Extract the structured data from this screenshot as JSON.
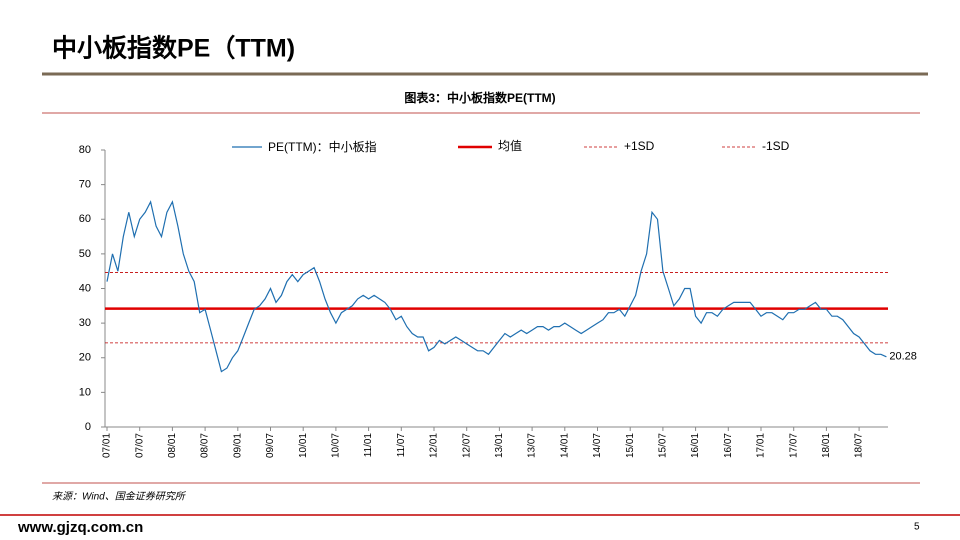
{
  "slide": {
    "title": "中小板指数PE（TTM)",
    "source": "来源：Wind、国金证券研究所",
    "website": "www.gjzq.com.cn",
    "page_number": "5"
  },
  "chart_data": {
    "type": "line",
    "title": "图表3：中小板指数PE(TTM)",
    "x": [
      "07/01",
      "07/02",
      "07/03",
      "07/04",
      "07/05",
      "07/06",
      "07/07",
      "07/08",
      "07/09",
      "07/10",
      "07/11",
      "07/12",
      "08/01",
      "08/02",
      "08/03",
      "08/04",
      "08/05",
      "08/06",
      "08/07",
      "08/08",
      "08/09",
      "08/10",
      "08/11",
      "08/12",
      "09/01",
      "09/02",
      "09/03",
      "09/04",
      "09/05",
      "09/06",
      "09/07",
      "09/08",
      "09/09",
      "09/10",
      "09/11",
      "09/12",
      "10/01",
      "10/02",
      "10/03",
      "10/04",
      "10/05",
      "10/06",
      "10/07",
      "10/08",
      "10/09",
      "10/10",
      "10/11",
      "10/12",
      "11/01",
      "11/02",
      "11/03",
      "11/04",
      "11/05",
      "11/06",
      "11/07",
      "11/08",
      "11/09",
      "11/10",
      "11/11",
      "11/12",
      "12/01",
      "12/02",
      "12/03",
      "12/04",
      "12/05",
      "12/06",
      "12/07",
      "12/08",
      "12/09",
      "12/10",
      "12/11",
      "12/12",
      "13/01",
      "13/02",
      "13/03",
      "13/04",
      "13/05",
      "13/06",
      "13/07",
      "13/08",
      "13/09",
      "13/10",
      "13/11",
      "13/12",
      "14/01",
      "14/02",
      "14/03",
      "14/04",
      "14/05",
      "14/06",
      "14/07",
      "14/08",
      "14/09",
      "14/10",
      "14/11",
      "14/12",
      "15/01",
      "15/02",
      "15/03",
      "15/04",
      "15/05",
      "15/06",
      "15/07",
      "15/08",
      "15/09",
      "15/10",
      "15/11",
      "15/12",
      "16/01",
      "16/02",
      "16/03",
      "16/04",
      "16/05",
      "16/06",
      "16/07",
      "16/08",
      "16/09",
      "16/10",
      "16/11",
      "16/12",
      "17/01",
      "17/02",
      "17/03",
      "17/04",
      "17/05",
      "17/06",
      "17/07",
      "17/08",
      "17/09",
      "17/10",
      "17/11",
      "17/12",
      "18/01",
      "18/02",
      "18/03",
      "18/04",
      "18/05",
      "18/06",
      "18/07",
      "18/08",
      "18/09",
      "18/10",
      "18/11",
      "18/12"
    ],
    "series": [
      {
        "name": "PE(TTM)：中小板指",
        "color": "#1f6fb0",
        "values": [
          42,
          50,
          45,
          55,
          62,
          55,
          60,
          62,
          65,
          58,
          55,
          62,
          65,
          58,
          50,
          45,
          42,
          33,
          34,
          28,
          22,
          16,
          17,
          20,
          22,
          26,
          30,
          34,
          35,
          37,
          40,
          36,
          38,
          42,
          44,
          42,
          44,
          45,
          46,
          42,
          37,
          33,
          30,
          33,
          34,
          35,
          37,
          38,
          37,
          38,
          37,
          36,
          34,
          31,
          32,
          29,
          27,
          26,
          26,
          22,
          23,
          25,
          24,
          25,
          26,
          25,
          24,
          23,
          22,
          22,
          21,
          23,
          25,
          27,
          26,
          27,
          28,
          27,
          28,
          29,
          29,
          28,
          29,
          29,
          30,
          29,
          28,
          27,
          28,
          29,
          30,
          31,
          33,
          33,
          34,
          32,
          35,
          38,
          45,
          50,
          62,
          60,
          45,
          40,
          35,
          37,
          40,
          40,
          32,
          30,
          33,
          33,
          32,
          34,
          35,
          36,
          36,
          36,
          36,
          34,
          32,
          33,
          33,
          32,
          31,
          33,
          33,
          34,
          34,
          35,
          36,
          34,
          34,
          32,
          32,
          31,
          29,
          27,
          26,
          24,
          22,
          21,
          21,
          20.28
        ]
      }
    ],
    "reference_lines": [
      {
        "name": "均值",
        "value": 34.2,
        "color": "#e00000",
        "style": "solid"
      },
      {
        "name": "+1SD",
        "value": 44.6,
        "color": "#c00000",
        "style": "dashed"
      },
      {
        "name": "-1SD",
        "value": 24.3,
        "color": "#c00000",
        "style": "dashed"
      }
    ],
    "ylim": [
      0,
      80
    ],
    "yticks": [
      0,
      10,
      20,
      30,
      40,
      50,
      60,
      70,
      80
    ],
    "xtick_every": 6,
    "last_value_label": true
  }
}
